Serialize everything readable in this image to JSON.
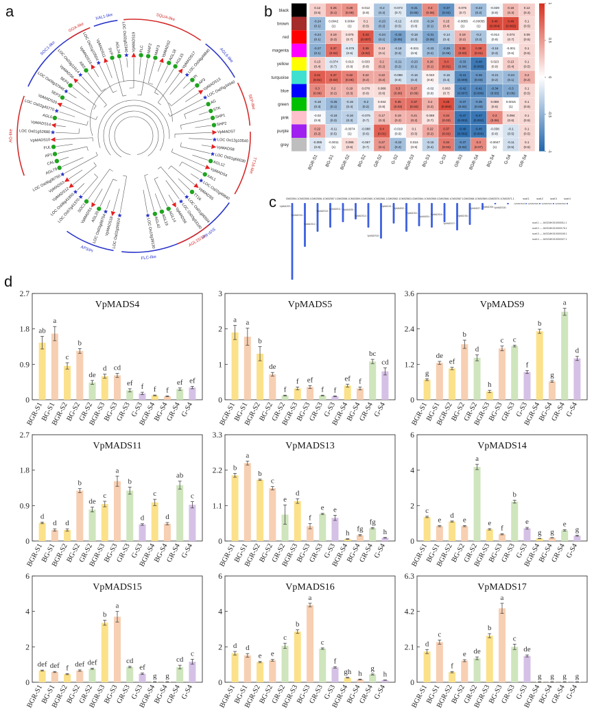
{
  "panels": {
    "a": "a",
    "b": "b",
    "c": "c",
    "d": "d"
  },
  "tree": {
    "clades": [
      {
        "name": "XAL1-like",
        "color": "#2b36c8",
        "a0": 250,
        "a1": 262
      },
      {
        "name": "SQUA-like",
        "color": "#d42a2a",
        "a0": 265,
        "a1": 305
      },
      {
        "name": "AGL6-like",
        "color": "#2b36c8",
        "a0": 308,
        "a1": 330
      },
      {
        "name": "SEP-like",
        "color": "#d42a2a",
        "a0": 333,
        "a1": 355
      },
      {
        "name": "TT16-like",
        "color": "#d42a2a",
        "a0": 358,
        "a1": 390
      },
      {
        "name": "SVP-like",
        "color": "#2b36c8",
        "a0": 395,
        "a1": 430
      },
      {
        "name": "FLC-like",
        "color": "#2b36c8",
        "a0": 70,
        "a1": 96
      },
      {
        "name": "AGL15/18",
        "color": "#d42a2a",
        "a0": 50,
        "a1": 68
      },
      {
        "name": "AG-like",
        "color": "#d42a2a",
        "a0": 160,
        "a1": 200
      },
      {
        "name": "AP3/PI",
        "color": "#2b36c8",
        "a0": 100,
        "a1": 125
      },
      {
        "name": "SOC1-like",
        "color": "#2b36c8",
        "a0": 205,
        "a1": 246
      },
      {
        "name": "GOA-like",
        "color": "#d42a2a",
        "a0": 236,
        "a1": 248
      }
    ],
    "leaves": [
      "LOC Os02g36924",
      "VpMADS18",
      "LOC Os03g08754",
      "AGL20",
      "VpMADS1",
      "SOC1",
      "LOC Os07g41370",
      "LOC Os08g41950",
      "VpMADS12",
      "VpMADS3",
      "LOC Os06g06750",
      "AGL79",
      "CAL",
      "AP1",
      "FUL",
      "VpMADS10",
      "LOC Os01g52680",
      "VpMADS14",
      "AGL6",
      "LOC Os02g45770",
      "VpMADS20",
      "SEP3",
      "LOC Os09g32948",
      "SEP4",
      "VpMADS6",
      "LOC Os03g11614",
      "ABS",
      "VpMADS16",
      "LOC Os01g10504",
      "VpMADS11",
      "SVP",
      "AGL24",
      "LOC Os02g52340",
      "VpMADS19",
      "FLC",
      "MAF2",
      "MAF3",
      "VpMADS2",
      "AGL18",
      "AGL15",
      "VpMADS17",
      "LOC Os06g49840",
      "PI",
      "AP3",
      "VpMADS13",
      "LOC Os05g34940",
      "AG",
      "STK",
      "SHP1",
      "SHP2",
      "VpMADS7",
      "LOC Os12g10540",
      "VpMADS8",
      "LOC Os01g66030",
      "AGL12",
      "VpMADS4",
      "XAL1",
      "LOC Os02g49840",
      "VpMADS5",
      "TT16",
      "LOC Os01g06504",
      "LOC Os03g53100",
      "VpMADS9",
      "AGL14",
      "AGL19",
      "AGL42",
      "LOC Os10g39130"
    ]
  },
  "heatmap": {
    "rows": [
      "black",
      "brown",
      "red",
      "magenta",
      "yellow",
      "turquoise",
      "blue",
      "green",
      "pink",
      "purple",
      "grey"
    ],
    "row_colors": [
      "#000000",
      "#a52a2a",
      "#ff0000",
      "#ff00ff",
      "#ffff00",
      "#40e0d0",
      "#0000ff",
      "#00c000",
      "#ffc0cb",
      "#a020f0",
      "#bebebe"
    ],
    "cols": [
      "BGR-S1",
      "BG-S1",
      "BGR-S2",
      "BG-S2",
      "GR-S2",
      "G-S2",
      "BGR-S3",
      "BG-S3",
      "G-S3",
      "GR-S3",
      "BGR-S4",
      "BG-S4",
      "G-S4",
      "GR-S4"
    ],
    "values": [
      [
        0.12,
        0.25,
        0.28,
        0.012,
        -0.2,
        -0.073,
        -0.31,
        0.3,
        -0.37,
        0.075,
        -0.23,
        -0.029,
        0.18,
        0.12
      ],
      [
        -0.24,
        0.0042,
        0.0064,
        0.1,
        -0.23,
        -0.12,
        -0.033,
        -0.24,
        0.15,
        -0.0055,
        -0.00055,
        0.46,
        0.46,
        0.1
      ],
      [
        -0.24,
        0.19,
        0.075,
        0.43,
        -0.24,
        -0.33,
        -0.18,
        -0.31,
        -0.14,
        0.19,
        -0.2,
        -0.014,
        0.074,
        0.09
      ],
      [
        -0.27,
        0.37,
        -0.075,
        0.39,
        0.13,
        -0.18,
        -0.031,
        -0.23,
        -0.29,
        0.38,
        0.39,
        -0.16,
        -0.001,
        0.1
      ],
      [
        0.13,
        -0.074,
        0.013,
        0.033,
        0.2,
        -0.21,
        -0.23,
        0.26,
        0.4,
        -0.33,
        -0.46,
        0.023,
        0.13,
        0.1
      ],
      [
        0.41,
        0.37,
        0.32,
        0.22,
        0.22,
        -0.098,
        -0.16,
        0.033,
        -0.15,
        -0.41,
        -0.36,
        -0.21,
        -0.24,
        0.2
      ],
      [
        0.3,
        0.2,
        0.19,
        0.078,
        0.086,
        0.3,
        0.27,
        -0.02,
        0.063,
        -0.42,
        -0.41,
        -0.34,
        -0.3,
        0.1
      ],
      [
        -0.18,
        -0.25,
        -0.15,
        -0.2,
        0.042,
        0.35,
        0.37,
        0.2,
        0.45,
        -0.37,
        -0.35,
        0.088,
        0.0015,
        0.1
      ],
      [
        -0.02,
        -0.18,
        -0.16,
        -0.075,
        0.17,
        0.19,
        0.21,
        0.068,
        0.34,
        -0.47,
        -0.47,
        0.3,
        0.094,
        0.1
      ],
      [
        0.22,
        -0.11,
        -0.0074,
        -0.088,
        0.4,
        -0.019,
        0.1,
        0.22,
        0.37,
        -0.49,
        -0.46,
        -0.038,
        -0.1,
        0.1
      ],
      [
        -0.085,
        -0.0011,
        0.095,
        -0.067,
        0.27,
        -0.22,
        0.016,
        -0.15,
        0.34,
        -0.37,
        0.3,
        -0.0047,
        -0.11,
        0.1
      ]
    ],
    "pvalues": [
      [
        "(0.5)",
        "(0.1)",
        "(0.09)",
        "(0.9)",
        "(0.2)",
        "(0.7)",
        "(0.06)",
        "(0.06)",
        "(0.02)",
        "(0.7)",
        "(0.2)",
        "(0.9)",
        "(0.3)",
        "(0.3)"
      ],
      [
        "(0.1)",
        "(1)",
        "(1)",
        "(0.5)",
        "(0.2)",
        "(0.5)",
        "(0.8)",
        "(0.1)",
        "(0.4)",
        "(1)",
        "(1)",
        "(0.004)",
        "(0.002)",
        "(0.5)"
      ],
      [
        "(0.1)",
        "(0.3)",
        "(0.7)",
        "(0.007)",
        "(0.1)",
        "(0.05)",
        "(0.3)",
        "(0.05)",
        "(0.4)",
        "(0.2)",
        "(0.2)",
        "(0.9)",
        "(0.7)",
        "(0.5)"
      ],
      [
        "(0.1)",
        "(0.02)",
        "(0.6)",
        "(0.02)",
        "(0.1)",
        "(0.3)",
        "(0.9)",
        "(0.2)",
        "(0.08)",
        "(0.03)",
        "(0.01)",
        "(0.3)",
        "(0.6)",
        "(0.5)"
      ],
      [
        "(0.4)",
        "(0.7)",
        "(0.9)",
        "(0.8)",
        "(0.2)",
        "(0.2)",
        "(0.1)",
        "(0.1)",
        "(0.01)",
        "(0.04)",
        "(0.003)",
        "(0.9)",
        "(0.4)",
        "(0.5)"
      ],
      [
        "(0.01)",
        "(0.02)",
        "(0.05)",
        "(0.2)",
        "(0.2)",
        "(0.6)",
        "(0.3)",
        "(0.8)",
        "(0.4)",
        "(0.009)",
        "(0.03)",
        "(0.2)",
        "(0.1)",
        "(0.2)"
      ],
      [
        "(0.06)",
        "(0.2)",
        "(0.3)",
        "(0.6)",
        "(0.6)",
        "(0.06)",
        "(0.09)",
        "(0.9)",
        "(0.7)",
        "(0.007)",
        "(0.009)",
        "(0.03)",
        "(0.06)",
        "(0.5)"
      ],
      [
        "(0.3)",
        "(0.1)",
        "(0.4)",
        "(0.2)",
        "(0.8)",
        "(0.03)",
        "(0.02)",
        "(0.2)",
        "(0.004)",
        "(0.02)",
        "(0.03)",
        "(0.6)",
        "(1)",
        "(0.5)"
      ],
      [
        "(0.9)",
        "(0.3)",
        "(0.3)",
        "(0.7)",
        "(0.3)",
        "(0.2)",
        "(0.2)",
        "(0.7)",
        "(0.03)",
        "(0.002)",
        "(0.002)",
        "(0.06)",
        "(0.6)",
        "(0.5)"
      ],
      [
        "(0.2)",
        "(0.5)",
        "(1)",
        "(0.6)",
        "(0.01)",
        "(0.9)",
        "(0.5)",
        "(0.2)",
        "(0.02)",
        "(0.002)",
        "(0.004)",
        "(0.8)",
        "(0.5)",
        "(0.5)"
      ],
      [
        "(0.6)",
        "(1)",
        "(0.6)",
        "(0.7)",
        "(0.1)",
        "(0.2)",
        "(0.9)",
        "(0.4)",
        "(0.04)",
        "(0.02)",
        "(0.07)",
        "(1)",
        "(0.5)",
        "(0.5)"
      ]
    ],
    "scale_ticks": [
      "1",
      "0.5",
      "0",
      "-0.5",
      "-1"
    ]
  },
  "chromosomes": {
    "names": [
      "CM02554.1",
      "CM02555.1",
      "CM02556.1",
      "CM02557.1",
      "CM02558.1",
      "CM02559.1",
      "CM02560.1",
      "CM02561.1",
      "CM02562.1",
      "CM02563.1",
      "CM02564.1",
      "CM02565.1",
      "CM02566.1",
      "CM02567.1",
      "CM02568.1",
      "CM02569.1",
      "CM02570.1",
      "CM02571.1",
      "scaf.1",
      "scaf.2",
      "scaf.3",
      "scaf.4"
    ],
    "genes": [
      "VpMADS9",
      "VpMADS10",
      "VpMADS12",
      "VpMADS13",
      "VpMADS11",
      "VpMADS5",
      "VpMADS14",
      "VpMADS15",
      "VpMADS1",
      "VpMADS2",
      "VpMADS3",
      "VpMADS4",
      "VpMADS16",
      "VpMADS17",
      "VpMADS6",
      "VpMADS7",
      "VpMADS8",
      "VpMADS18",
      "VpMADS19",
      "VpMADS20",
      "VpMADS21",
      "VpMADS22"
    ],
    "legend": [
      "scaf.1 --- JASCMK010000011.1",
      "scaf.2 --- JASCMK010000176.1",
      "scaf.3 --- JASCMK010000165.1",
      "scaf.4 --- JASCMK010000327.1"
    ]
  },
  "chart_data": [
    {
      "type": "bar",
      "title": "VpMADS4",
      "categories": [
        "BGR-S1",
        "BG-S1",
        "BGR-S2",
        "BG-S2",
        "GR-S2",
        "BGR-S3",
        "BG-S3",
        "GR-S3",
        "G-S3",
        "BGR-S4",
        "BG-S4",
        "GR-S4",
        "G-S4"
      ],
      "values": [
        1.45,
        1.68,
        0.86,
        1.24,
        0.44,
        0.6,
        0.62,
        0.24,
        0.16,
        0.11,
        0.09,
        0.27,
        0.31
      ],
      "errors": [
        0.16,
        0.18,
        0.08,
        0.06,
        0.05,
        0.05,
        0.05,
        0.04,
        0.03,
        0.01,
        0.01,
        0.03,
        0.03
      ],
      "letters": [
        "ab",
        "a",
        "c",
        "b",
        "de",
        "d",
        "cd",
        "ef",
        "f",
        "f",
        "f",
        "ef",
        "ef"
      ],
      "ylim": [
        0,
        2.7
      ],
      "yticks": [
        "0",
        "0.9",
        "1.8",
        "2.7"
      ]
    },
    {
      "type": "bar",
      "title": "VpMADS5",
      "categories": [
        "BGR-S1",
        "BG-S1",
        "BGR-S2",
        "BG-S2",
        "GR-S2",
        "BGR-S3",
        "BG-S3",
        "GR-S3",
        "G-S3",
        "BGR-S4",
        "BG-S4",
        "GR-S4",
        "G-S4"
      ],
      "values": [
        1.9,
        1.78,
        1.3,
        0.72,
        0.12,
        0.32,
        0.36,
        0.12,
        0.1,
        0.4,
        0.32,
        1.08,
        0.8
      ],
      "errors": [
        0.2,
        0.24,
        0.2,
        0.05,
        0.01,
        0.04,
        0.04,
        0.01,
        0.01,
        0.04,
        0.04,
        0.06,
        0.1
      ],
      "letters": [
        "a",
        "a",
        "b",
        "de",
        "f",
        "f",
        "ef",
        "f",
        "f",
        "ef",
        "f",
        "bc",
        "cd"
      ],
      "ylim": [
        0,
        3
      ],
      "yticks": [
        "0",
        "1",
        "2",
        "3"
      ]
    },
    {
      "type": "bar",
      "title": "VpMADS9",
      "categories": [
        "BGR-S1",
        "BG-S1",
        "BGR-S2",
        "BG-S2",
        "GR-S2",
        "BGR-S3",
        "BG-S3",
        "GR-S3",
        "G-S3",
        "BGR-S4",
        "BG-S4",
        "GR-S4",
        "G-S4"
      ],
      "values": [
        0.68,
        1.25,
        1.06,
        1.88,
        1.42,
        0.28,
        1.74,
        1.82,
        0.94,
        2.32,
        0.62,
        2.98,
        1.4
      ],
      "errors": [
        0.03,
        0.05,
        0.04,
        0.14,
        0.1,
        0.04,
        0.08,
        0.03,
        0.05,
        0.07,
        0.03,
        0.12,
        0.07
      ],
      "letters": [
        "g",
        "de",
        "ef",
        "b",
        "d",
        "h",
        "c",
        "c",
        "f",
        "b",
        "g",
        "a",
        "d"
      ],
      "ylim": [
        0,
        3.6
      ],
      "yticks": [
        "0",
        "1.2",
        "2.4",
        "3.6"
      ]
    },
    {
      "type": "bar",
      "title": "VpMADS11",
      "categories": [
        "BGR-S1",
        "BG-S1",
        "BGR-S2",
        "BG-S2",
        "GR-S2",
        "BGR-S3",
        "BG-S3",
        "GR-S3",
        "G-S3",
        "BGR-S4",
        "BG-S4",
        "GR-S4",
        "G-S4"
      ],
      "values": [
        0.46,
        0.28,
        0.28,
        1.28,
        0.8,
        0.94,
        1.52,
        1.28,
        0.42,
        0.98,
        0.44,
        1.42,
        0.92
      ],
      "errors": [
        0.02,
        0.03,
        0.03,
        0.05,
        0.06,
        0.07,
        0.13,
        0.09,
        0.02,
        0.08,
        0.03,
        0.1,
        0.08
      ],
      "letters": [
        "d",
        "d",
        "d",
        "b",
        "de",
        "c",
        "a",
        "b",
        "d",
        "c",
        "d",
        "ab",
        "c"
      ],
      "ylim": [
        0,
        2.7
      ],
      "yticks": [
        "0",
        "0.9",
        "1.8",
        "2.7"
      ]
    },
    {
      "type": "bar",
      "title": "VpMADS13",
      "categories": [
        "BGR-S1",
        "BG-S1",
        "BGR-S2",
        "BG-S2",
        "GR-S2",
        "BGR-S3",
        "BG-S3",
        "GR-S3",
        "G-S3",
        "BGR-S4",
        "BG-S4",
        "GR-S4",
        "G-S4"
      ],
      "values": [
        2.04,
        2.42,
        1.9,
        1.64,
        0.82,
        1.24,
        0.46,
        0.84,
        0.72,
        0.06,
        0.18,
        0.4,
        0.1
      ],
      "errors": [
        0.06,
        0.06,
        0.02,
        0.05,
        0.3,
        0.07,
        0.08,
        0.02,
        0.08,
        0.01,
        0.02,
        0.02,
        0.01
      ],
      "letters": [
        "b",
        "a",
        "b",
        "c",
        "e",
        "d",
        "f",
        "e",
        "e",
        "h",
        "fg",
        "fg",
        "h"
      ],
      "ylim": [
        0,
        3.3
      ],
      "yticks": [
        "0",
        "1.1",
        "2.2",
        "3.3"
      ]
    },
    {
      "type": "bar",
      "title": "VpMADS14",
      "categories": [
        "BGR-S1",
        "BG-S1",
        "BGR-S2",
        "BG-S2",
        "GR-S2",
        "BGR-S3",
        "BG-S3",
        "GR-S3",
        "G-S3",
        "BGR-S4",
        "BG-S4",
        "GR-S4",
        "G-S4"
      ],
      "values": [
        1.36,
        0.84,
        1.1,
        0.84,
        4.18,
        0.66,
        0.38,
        2.22,
        0.72,
        0.14,
        0.18,
        0.6,
        0.3
      ],
      "errors": [
        0.04,
        0.03,
        0.03,
        0.03,
        0.15,
        0.04,
        0.03,
        0.08,
        0.05,
        0.01,
        0.01,
        0.04,
        0.03
      ],
      "letters": [
        "c",
        "e",
        "d",
        "e",
        "a",
        "e",
        "f",
        "b",
        "e",
        "g",
        "g",
        "e",
        "g"
      ],
      "ylim": [
        0,
        6
      ],
      "yticks": [
        "0",
        "2",
        "4",
        "6"
      ]
    },
    {
      "type": "bar",
      "title": "VpMADS15",
      "categories": [
        "BGR-S1",
        "BG-S1",
        "BGR-S2",
        "BG-S2",
        "GR-S2",
        "BGR-S3",
        "BG-S3",
        "GR-S3",
        "G-S3",
        "BGR-S4",
        "BG-S4",
        "GR-S4",
        "G-S4"
      ],
      "values": [
        0.66,
        0.58,
        0.46,
        0.66,
        0.76,
        3.36,
        3.7,
        0.86,
        0.48,
        0.02,
        0.02,
        0.86,
        1.16
      ],
      "errors": [
        0.03,
        0.03,
        0.03,
        0.04,
        0.03,
        0.14,
        0.3,
        0.04,
        0.04,
        0.01,
        0.01,
        0.1,
        0.14
      ],
      "letters": [
        "def",
        "def",
        "f",
        "def",
        "def",
        "b",
        "a",
        "cd",
        "ef",
        "g",
        "g",
        "cd",
        "c"
      ],
      "ylim": [
        0,
        6
      ],
      "yticks": [
        "0",
        "2",
        "4",
        "6"
      ]
    },
    {
      "type": "bar",
      "title": "VpMADS16",
      "categories": [
        "BGR-S1",
        "BG-S1",
        "BGR-S2",
        "BG-S2",
        "GR-S2",
        "BGR-S3",
        "BG-S3",
        "GR-S3",
        "G-S3",
        "BGR-S4",
        "BG-S4",
        "GR-S4",
        "G-S4"
      ],
      "values": [
        1.64,
        1.52,
        1.14,
        1.24,
        2.06,
        2.86,
        4.36,
        1.9,
        0.84,
        0.26,
        0.16,
        0.44,
        0.12
      ],
      "errors": [
        0.1,
        0.1,
        0.04,
        0.05,
        0.14,
        0.1,
        0.1,
        0.04,
        0.04,
        0.02,
        0.02,
        0.03,
        0.01
      ],
      "letters": [
        "d",
        "d",
        "e",
        "e",
        "c",
        "b",
        "a",
        "c",
        "f",
        "gh",
        "h",
        "g",
        "h"
      ],
      "ylim": [
        0,
        6
      ],
      "yticks": [
        "0",
        "2",
        "4",
        "6"
      ]
    },
    {
      "type": "bar",
      "title": "VpMADS17",
      "categories": [
        "BGR-S1",
        "BG-S1",
        "BGR-S2",
        "BG-S2",
        "GR-S2",
        "BGR-S3",
        "BG-S3",
        "GR-S3",
        "G-S3",
        "BGR-S4",
        "BG-S4",
        "GR-S4",
        "G-S4"
      ],
      "values": [
        1.82,
        2.38,
        0.6,
        1.28,
        1.42,
        2.76,
        4.38,
        2.1,
        1.56,
        0.02,
        0.02,
        0.02,
        0.02
      ],
      "errors": [
        0.12,
        0.12,
        0.04,
        0.06,
        0.08,
        0.12,
        0.3,
        0.16,
        0.06,
        0.01,
        0.01,
        0.01,
        0.01
      ],
      "letters": [
        "d",
        "c",
        "f",
        "e",
        "de",
        "b",
        "a",
        "c",
        "de",
        "g",
        "g",
        "g",
        "g"
      ],
      "ylim": [
        0,
        6.3
      ],
      "yticks": [
        "0",
        "2.1",
        "4.2",
        "6.3"
      ]
    }
  ],
  "colors": {
    "yellow": "#fbe18a",
    "peach": "#f7cfb2",
    "green": "#cfe5bd",
    "purple": "#d6c1e6",
    "heat_pos": "#d7301f",
    "heat_neg": "#2166ac",
    "tree_green": "#1fa31f",
    "tree_red": "#e52020",
    "tree_blue": "#2b36c8"
  }
}
